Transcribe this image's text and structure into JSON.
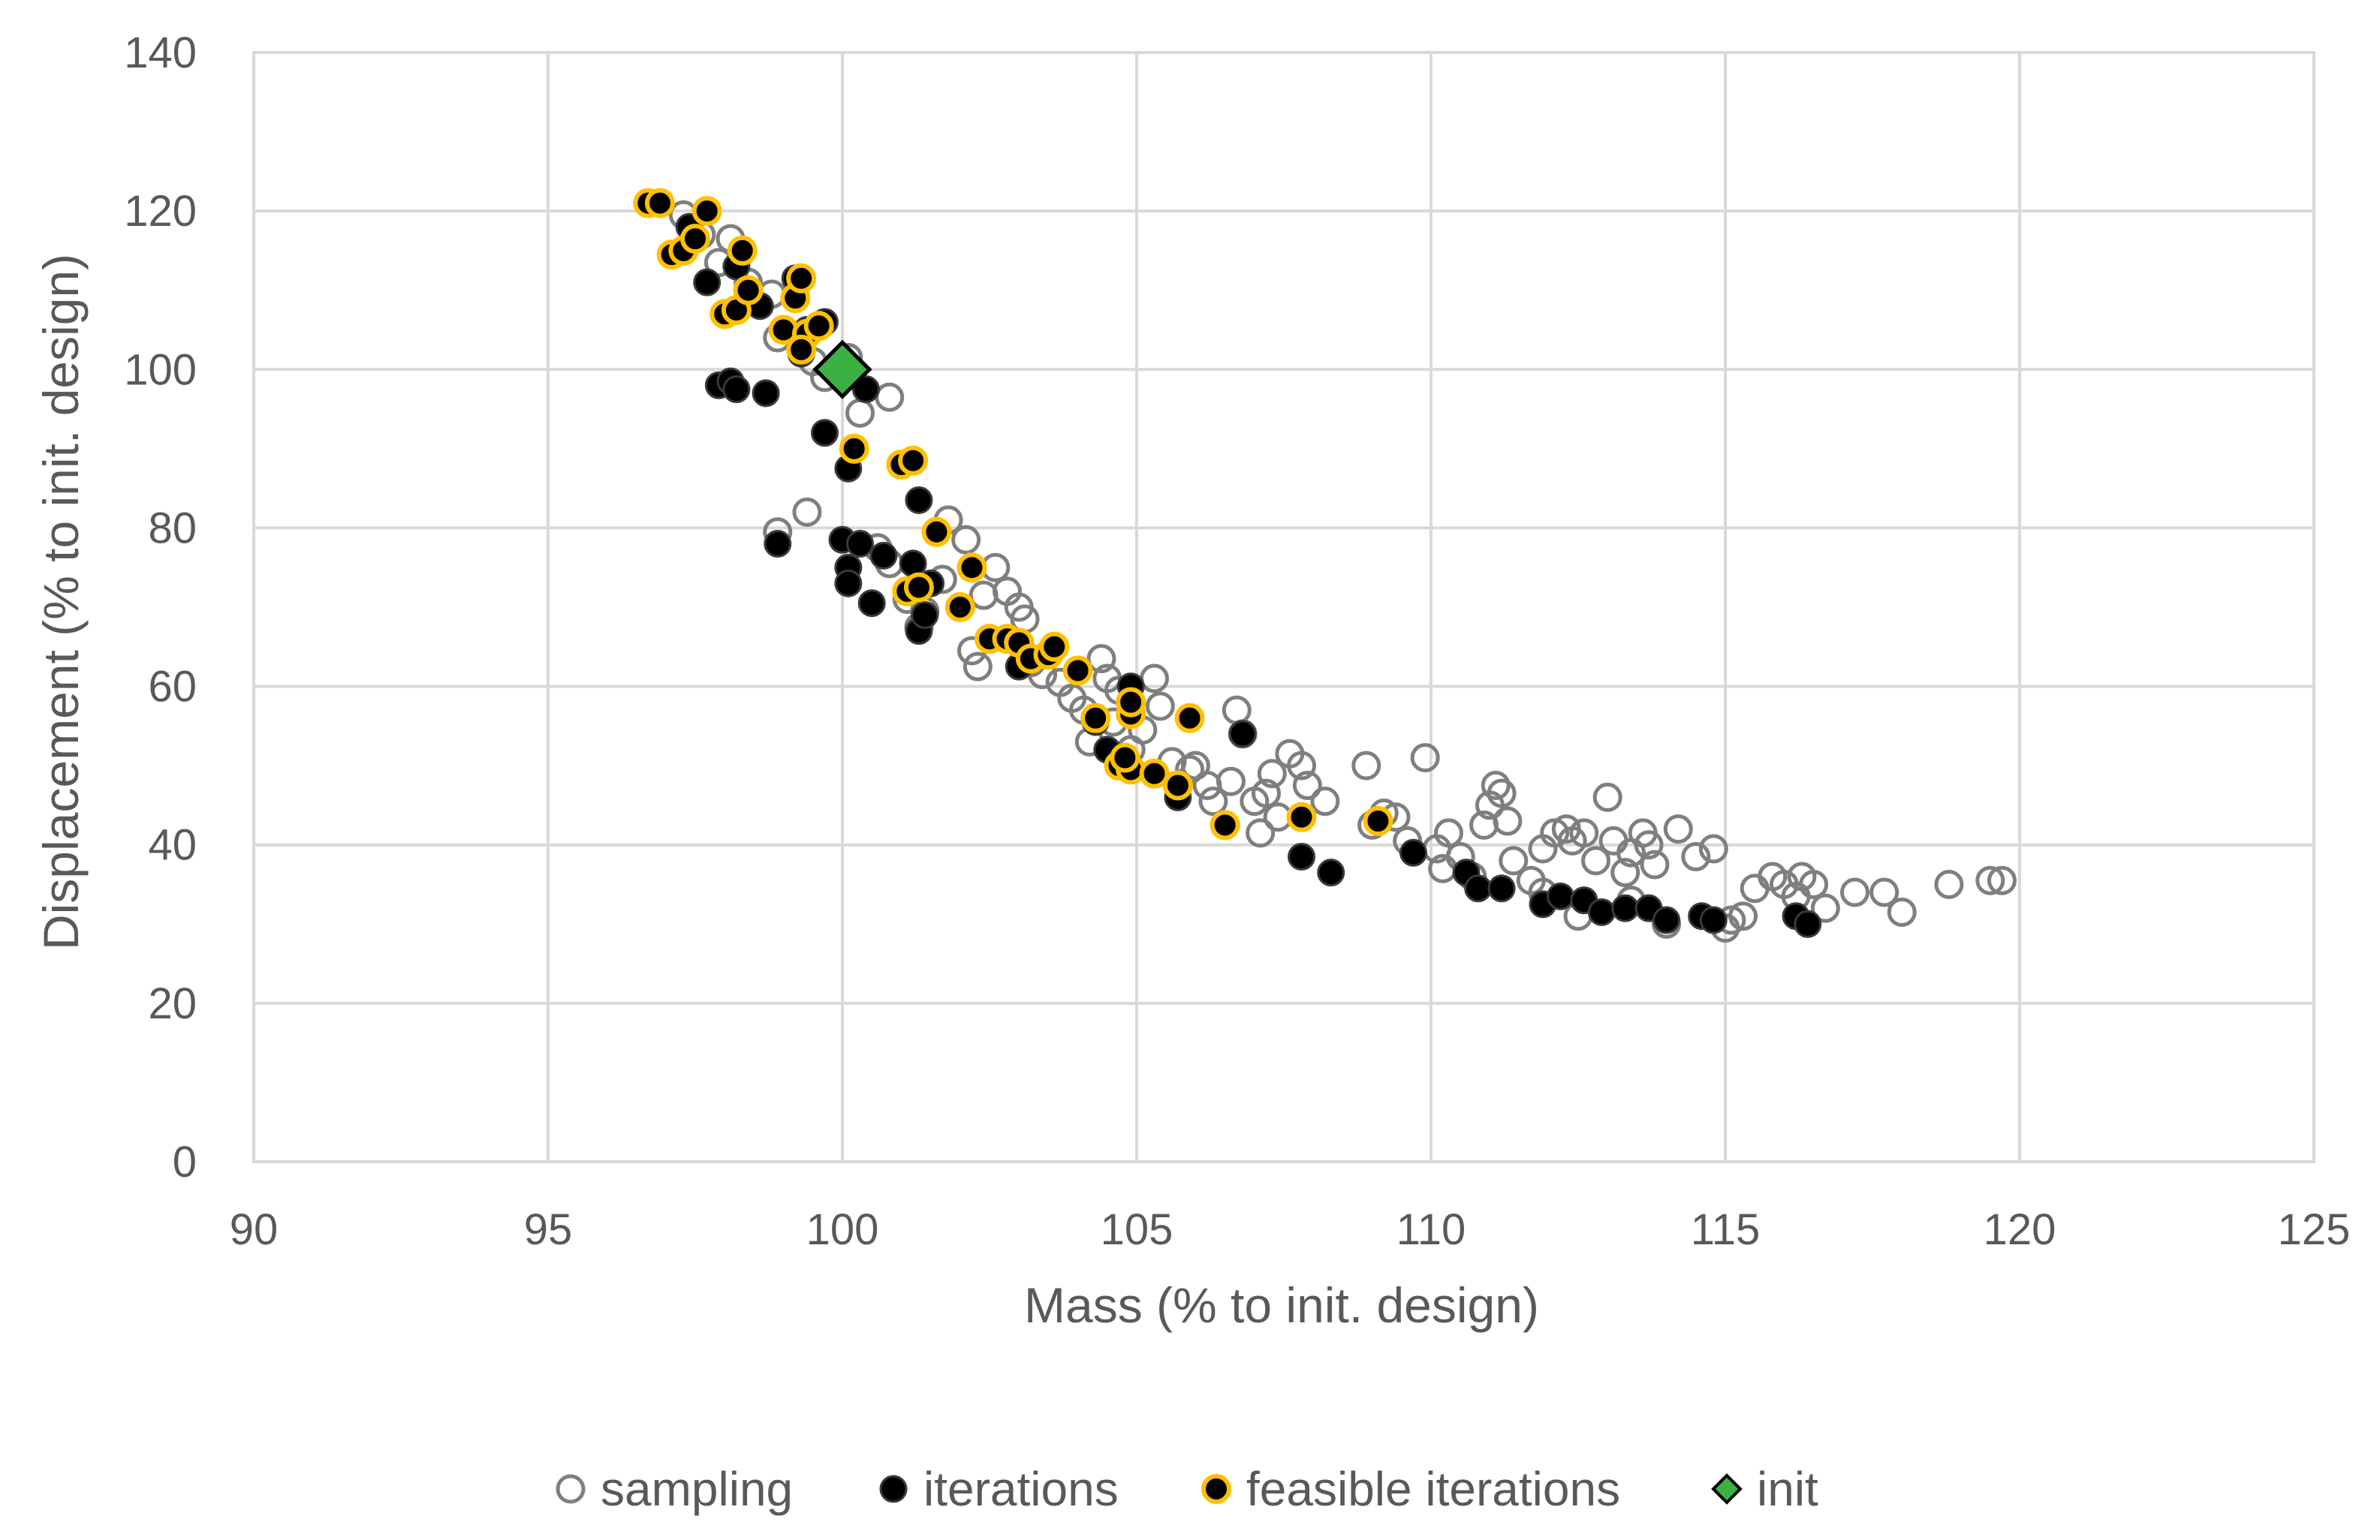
{
  "chart_data": {
    "type": "scatter",
    "title": "",
    "xlabel": "Mass (% to init. design)",
    "ylabel": "Displacement (% to init. design)",
    "xlim": [
      90,
      125
    ],
    "ylim": [
      0,
      140
    ],
    "xticks": [
      90,
      95,
      100,
      105,
      110,
      115,
      120,
      125
    ],
    "yticks": [
      0,
      20,
      40,
      60,
      80,
      100,
      120,
      140
    ],
    "grid": true,
    "legend_position": "bottom",
    "series": [
      {
        "name": "sampling",
        "marker": "open-circle",
        "color": "#7f7f7f",
        "points": [
          [
            97.3,
            119.5
          ],
          [
            97.6,
            117.0
          ],
          [
            98.1,
            116.5
          ],
          [
            97.9,
            113.5
          ],
          [
            98.4,
            111.0
          ],
          [
            98.8,
            109.5
          ],
          [
            98.9,
            104.0
          ],
          [
            99.5,
            101.0
          ],
          [
            99.7,
            99.0
          ],
          [
            100.1,
            101.5
          ],
          [
            100.3,
            94.5
          ],
          [
            100.8,
            96.5
          ],
          [
            98.9,
            79.5
          ],
          [
            99.4,
            82.0
          ],
          [
            100.6,
            77.5
          ],
          [
            100.8,
            75.5
          ],
          [
            101.1,
            71.0
          ],
          [
            101.3,
            67.5
          ],
          [
            101.4,
            69.5
          ],
          [
            101.8,
            81.0
          ],
          [
            102.1,
            78.5
          ],
          [
            101.7,
            73.5
          ],
          [
            102.4,
            71.5
          ],
          [
            102.6,
            75.0
          ],
          [
            102.2,
            64.5
          ],
          [
            102.3,
            62.5
          ],
          [
            102.8,
            72.0
          ],
          [
            103.0,
            70.0
          ],
          [
            103.1,
            68.5
          ],
          [
            103.2,
            63.0
          ],
          [
            103.4,
            61.5
          ],
          [
            103.7,
            60.5
          ],
          [
            103.9,
            58.5
          ],
          [
            104.1,
            57.0
          ],
          [
            104.2,
            53.0
          ],
          [
            104.4,
            63.5
          ],
          [
            104.5,
            61.0
          ],
          [
            104.7,
            59.5
          ],
          [
            104.6,
            55.5
          ],
          [
            104.9,
            52.0
          ],
          [
            105.1,
            54.5
          ],
          [
            105.3,
            61.0
          ],
          [
            105.4,
            57.5
          ],
          [
            105.6,
            50.5
          ],
          [
            105.9,
            49.5
          ],
          [
            106.0,
            50.0
          ],
          [
            106.2,
            47.5
          ],
          [
            106.3,
            45.5
          ],
          [
            106.6,
            48.0
          ],
          [
            106.7,
            57.0
          ],
          [
            106.8,
            54.0
          ],
          [
            107.0,
            45.5
          ],
          [
            107.1,
            41.5
          ],
          [
            107.2,
            46.5
          ],
          [
            107.3,
            49.0
          ],
          [
            107.4,
            43.5
          ],
          [
            107.6,
            51.5
          ],
          [
            107.8,
            50.0
          ],
          [
            107.9,
            47.5
          ],
          [
            108.2,
            45.5
          ],
          [
            108.9,
            50.0
          ],
          [
            109.0,
            42.5
          ],
          [
            109.2,
            44.0
          ],
          [
            109.4,
            43.5
          ],
          [
            109.6,
            40.5
          ],
          [
            109.9,
            51.0
          ],
          [
            110.1,
            39.5
          ],
          [
            110.2,
            37.0
          ],
          [
            110.3,
            41.5
          ],
          [
            110.5,
            38.5
          ],
          [
            110.7,
            36.0
          ],
          [
            110.9,
            42.5
          ],
          [
            111.0,
            45.0
          ],
          [
            111.1,
            47.5
          ],
          [
            111.2,
            46.5
          ],
          [
            111.3,
            43.0
          ],
          [
            111.4,
            38.0
          ],
          [
            111.7,
            35.5
          ],
          [
            111.9,
            39.5
          ],
          [
            112.1,
            41.5
          ],
          [
            112.3,
            42.0
          ],
          [
            112.4,
            40.5
          ],
          [
            112.6,
            41.5
          ],
          [
            112.8,
            38.0
          ],
          [
            113.0,
            46.0
          ],
          [
            113.1,
            40.5
          ],
          [
            113.3,
            36.5
          ],
          [
            113.4,
            39.0
          ],
          [
            113.6,
            41.5
          ],
          [
            113.7,
            40.0
          ],
          [
            113.8,
            37.5
          ],
          [
            114.0,
            30.0
          ],
          [
            114.2,
            42.0
          ],
          [
            114.5,
            38.5
          ],
          [
            114.8,
            39.5
          ],
          [
            115.0,
            29.5
          ],
          [
            115.1,
            30.5
          ],
          [
            115.3,
            31.0
          ],
          [
            115.5,
            34.5
          ],
          [
            115.8,
            36.0
          ],
          [
            116.0,
            35.0
          ],
          [
            116.2,
            33.5
          ],
          [
            116.3,
            36.0
          ],
          [
            116.5,
            35.0
          ],
          [
            116.7,
            32.0
          ],
          [
            117.2,
            34.0
          ],
          [
            117.7,
            34.0
          ],
          [
            118.0,
            31.5
          ],
          [
            118.8,
            35.0
          ],
          [
            119.5,
            35.5
          ],
          [
            119.7,
            35.5
          ],
          [
            112.5,
            31.0
          ],
          [
            113.4,
            33.0
          ],
          [
            111.9,
            34.0
          ]
        ]
      },
      {
        "name": "iterations",
        "marker": "filled-circle",
        "color": "#000000",
        "points": [
          [
            97.4,
            118.0
          ],
          [
            97.7,
            111.0
          ],
          [
            98.2,
            113.0
          ],
          [
            98.6,
            108.0
          ],
          [
            99.0,
            105.0
          ],
          [
            99.3,
            102.0
          ],
          [
            99.7,
            106.0
          ],
          [
            97.9,
            98.0
          ],
          [
            98.1,
            98.5
          ],
          [
            98.2,
            97.5
          ],
          [
            98.7,
            97.0
          ],
          [
            99.7,
            92.0
          ],
          [
            100.1,
            87.5
          ],
          [
            100.4,
            97.5
          ],
          [
            101.3,
            83.5
          ],
          [
            98.9,
            78.0
          ],
          [
            100.0,
            78.5
          ],
          [
            100.1,
            75.0
          ],
          [
            100.1,
            73.0
          ],
          [
            100.3,
            78.0
          ],
          [
            100.5,
            70.5
          ],
          [
            100.7,
            76.5
          ],
          [
            101.2,
            75.5
          ],
          [
            101.5,
            73.0
          ],
          [
            101.3,
            67.0
          ],
          [
            101.4,
            69.0
          ],
          [
            103.0,
            62.5
          ],
          [
            104.3,
            55.5
          ],
          [
            104.5,
            52.0
          ],
          [
            104.9,
            60.0
          ],
          [
            105.7,
            46.0
          ],
          [
            106.8,
            54.0
          ],
          [
            107.8,
            38.5
          ],
          [
            108.3,
            36.5
          ],
          [
            109.7,
            39.0
          ],
          [
            110.6,
            36.5
          ],
          [
            110.8,
            34.5
          ],
          [
            111.2,
            34.5
          ],
          [
            111.9,
            32.5
          ],
          [
            112.2,
            33.5
          ],
          [
            112.6,
            33.0
          ],
          [
            112.9,
            31.5
          ],
          [
            113.3,
            32.0
          ],
          [
            113.7,
            32.0
          ],
          [
            114.0,
            30.5
          ],
          [
            114.6,
            31.0
          ],
          [
            114.8,
            30.5
          ],
          [
            116.2,
            31.0
          ],
          [
            116.4,
            30.0
          ],
          [
            99.2,
            111.5
          ],
          [
            99.4,
            105.0
          ]
        ]
      },
      {
        "name": "feasible iterations",
        "marker": "filled-circle-outlined",
        "color": "#000000",
        "edge": "#ffc000",
        "points": [
          [
            96.7,
            121.0
          ],
          [
            96.9,
            121.0
          ],
          [
            97.1,
            114.5
          ],
          [
            97.3,
            115.0
          ],
          [
            97.5,
            116.5
          ],
          [
            97.7,
            120.0
          ],
          [
            98.0,
            107.0
          ],
          [
            98.3,
            115.0
          ],
          [
            98.2,
            107.5
          ],
          [
            98.4,
            110.0
          ],
          [
            99.0,
            105.0
          ],
          [
            99.2,
            109.0
          ],
          [
            99.3,
            111.5
          ],
          [
            99.4,
            104.5
          ],
          [
            99.6,
            105.5
          ],
          [
            99.3,
            102.5
          ],
          [
            100.2,
            90.0
          ],
          [
            101.0,
            88.0
          ],
          [
            101.2,
            88.5
          ],
          [
            101.6,
            79.5
          ],
          [
            101.1,
            72.0
          ],
          [
            101.3,
            72.5
          ],
          [
            102.0,
            70.0
          ],
          [
            102.2,
            75.0
          ],
          [
            102.5,
            66.0
          ],
          [
            102.8,
            66.0
          ],
          [
            103.0,
            65.5
          ],
          [
            103.2,
            63.5
          ],
          [
            103.5,
            64.0
          ],
          [
            103.6,
            65.0
          ],
          [
            104.0,
            62.0
          ],
          [
            104.3,
            56.0
          ],
          [
            104.7,
            50.0
          ],
          [
            104.9,
            56.5
          ],
          [
            104.9,
            58.0
          ],
          [
            104.9,
            49.5
          ],
          [
            105.3,
            49.0
          ],
          [
            105.7,
            47.5
          ],
          [
            105.9,
            56.0
          ],
          [
            106.5,
            42.5
          ],
          [
            107.8,
            43.5
          ],
          [
            109.1,
            43.0
          ],
          [
            104.8,
            51.0
          ]
        ]
      },
      {
        "name": "init",
        "marker": "diamond",
        "color": "#3cb043",
        "edge": "#000000",
        "points": [
          [
            100.0,
            100.0
          ]
        ]
      }
    ]
  }
}
